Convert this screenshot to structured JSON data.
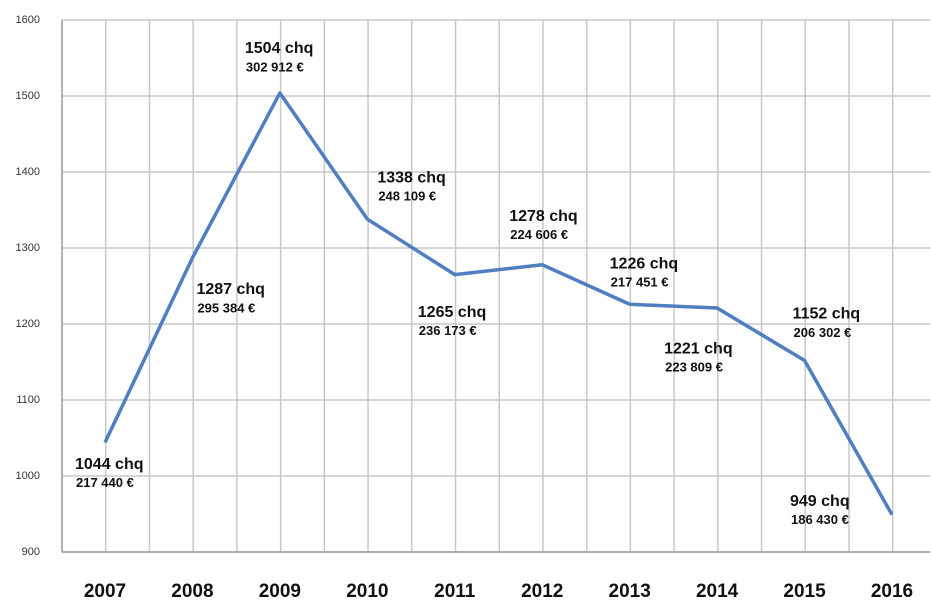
{
  "chart_data": {
    "type": "line",
    "categories": [
      "2007",
      "2008",
      "2009",
      "2010",
      "2011",
      "2012",
      "2013",
      "2014",
      "2015",
      "2016"
    ],
    "values": [
      1044,
      1287,
      1504,
      1338,
      1265,
      1278,
      1226,
      1221,
      1152,
      949
    ],
    "value_labels": [
      "1044 chq",
      "1287 chq",
      "1504 chq",
      "1338 chq",
      "1265 chq",
      "1278 chq",
      "1226 chq",
      "1221 chq",
      "1152 chq",
      "949 chq"
    ],
    "amount_labels": [
      "217 440 €",
      "295 384 €",
      "302 912 €",
      "248 109 €",
      "236 173 €",
      "224 606 €",
      "217 451 €",
      "223 809 €",
      "206 302 €",
      "186 430 €"
    ],
    "color": "#4f7fc1",
    "ylim": [
      900,
      1600
    ],
    "yticks": [
      900,
      1000,
      1100,
      1200,
      1300,
      1400,
      1500,
      1600
    ],
    "grid": true
  }
}
